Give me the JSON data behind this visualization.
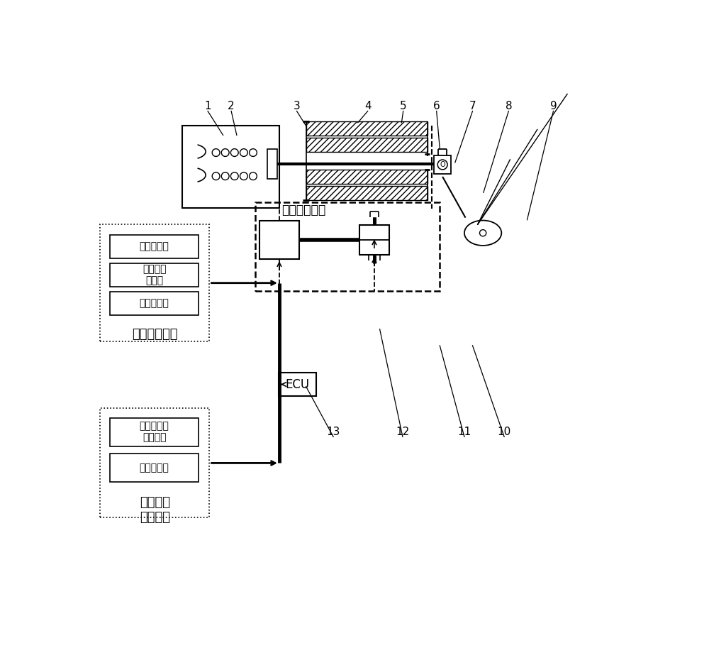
{
  "bg_color": "#ffffff",
  "sensor_box1_labels": [
    "挡位传感器",
    "油门开度\n传感器",
    "霍尔传感器"
  ],
  "group1_label": "溩坡检测模块",
  "sensor_box2_labels": [
    "制动蹏板位\n移传感器",
    "轮速传感器"
  ],
  "group2_label": "紧急制动\n检测模块",
  "brake_label": "制动执行机构"
}
